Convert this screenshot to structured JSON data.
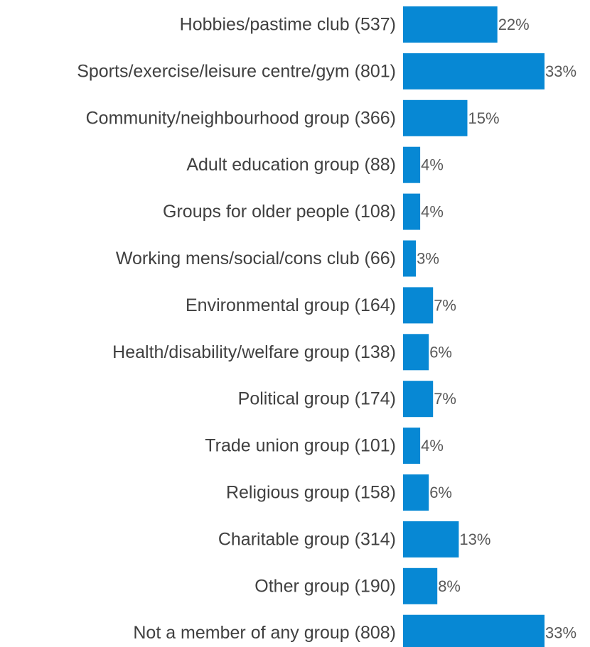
{
  "chart_data": {
    "type": "bar",
    "orientation": "horizontal",
    "title": "",
    "xlabel": "",
    "ylabel": "",
    "categories": [
      "Hobbies/pastime club (537)",
      "Sports/exercise/leisure centre/gym (801)",
      "Community/neighbourhood group (366)",
      "Adult education group (88)",
      "Groups for older people (108)",
      "Working mens/social/cons club (66)",
      "Environmental group (164)",
      "Health/disability/welfare group (138)",
      "Political group (174)",
      "Trade union group (101)",
      "Religious group (158)",
      "Charitable group (314)",
      "Other group (190)",
      "Not a member of any group (808)"
    ],
    "values": [
      22,
      33,
      15,
      4,
      4,
      3,
      7,
      6,
      7,
      4,
      6,
      13,
      8,
      33
    ],
    "value_labels": [
      "22%",
      "33%",
      "15%",
      "4%",
      "4%",
      "3%",
      "7%",
      "6%",
      "7%",
      "4%",
      "6%",
      "13%",
      "8%",
      "33%"
    ],
    "unit": "%",
    "grid": false,
    "legend": "none",
    "bar_color": "#0788D4"
  }
}
